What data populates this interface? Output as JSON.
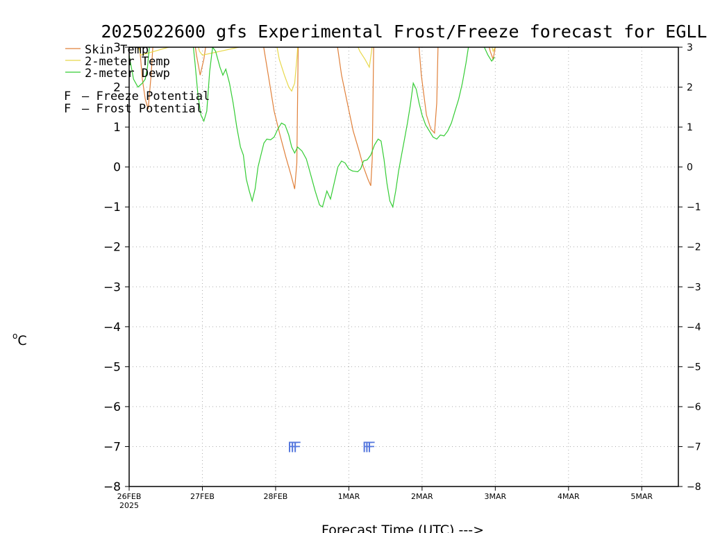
{
  "chart_data": {
    "type": "line",
    "title": "2025022600 gfs Experimental Frost/Freeze forecast for EGLL",
    "xlabel": "Forecast Time (UTC) --->",
    "ylabel": "°C",
    "ylabel_sup": "o",
    "ylabel_main": "C",
    "ylim": [
      -8,
      3
    ],
    "y_ticks": [
      -8,
      -7,
      -6,
      -5,
      -4,
      -3,
      -2,
      -1,
      0,
      1,
      2,
      3
    ],
    "y_tick_labels": [
      "−8",
      "−7",
      "−6",
      "−5",
      "−4",
      "−3",
      "−2",
      "−1",
      "0",
      "1",
      "2",
      "3"
    ],
    "x_range_days": [
      0,
      7.5
    ],
    "x_ticks": [
      {
        "day": 0,
        "label": "26FEB",
        "sub": "2025"
      },
      {
        "day": 1,
        "label": "27FEB",
        "sub": ""
      },
      {
        "day": 2,
        "label": "28FEB",
        "sub": ""
      },
      {
        "day": 3,
        "label": "1MAR",
        "sub": ""
      },
      {
        "day": 4,
        "label": "2MAR",
        "sub": ""
      },
      {
        "day": 5,
        "label": "3MAR",
        "sub": ""
      },
      {
        "day": 6,
        "label": "4MAR",
        "sub": ""
      },
      {
        "day": 7,
        "label": "5MAR",
        "sub": ""
      }
    ],
    "grid": true,
    "legend_placement": "top-left",
    "series": [
      {
        "name": "Skin Temp",
        "color": "#e0803a",
        "points": [
          [
            0.13,
            3.3
          ],
          [
            0.18,
            2.2
          ],
          [
            0.22,
            1.7
          ],
          [
            0.26,
            1.45
          ],
          [
            0.3,
            2.3
          ],
          [
            0.33,
            3.2
          ],
          [
            0.88,
            3.3
          ],
          [
            0.92,
            2.8
          ],
          [
            0.97,
            2.3
          ],
          [
            1.02,
            2.7
          ],
          [
            1.06,
            3.2
          ],
          [
            1.82,
            3.2
          ],
          [
            1.9,
            2.3
          ],
          [
            1.98,
            1.4
          ],
          [
            2.06,
            0.8
          ],
          [
            2.14,
            0.25
          ],
          [
            2.21,
            -0.2
          ],
          [
            2.26,
            -0.55
          ],
          [
            2.29,
            0.1
          ],
          [
            2.31,
            3.2
          ],
          [
            2.83,
            3.2
          ],
          [
            2.9,
            2.3
          ],
          [
            2.98,
            1.6
          ],
          [
            3.06,
            0.9
          ],
          [
            3.14,
            0.4
          ],
          [
            3.2,
            0.0
          ],
          [
            3.26,
            -0.3
          ],
          [
            3.3,
            -0.47
          ],
          [
            3.32,
            0.2
          ],
          [
            3.34,
            3.2
          ],
          [
            3.95,
            3.2
          ],
          [
            3.99,
            2.3
          ],
          [
            4.06,
            1.3
          ],
          [
            4.12,
            0.95
          ],
          [
            4.17,
            0.85
          ],
          [
            4.2,
            1.6
          ],
          [
            4.22,
            3.2
          ],
          [
            4.89,
            3.2
          ],
          [
            4.93,
            2.9
          ],
          [
            4.97,
            2.7
          ],
          [
            5.0,
            3.0
          ]
        ]
      },
      {
        "name": "2-meter Temp",
        "color": "#e8d84a",
        "points": [
          [
            0.13,
            3.0
          ],
          [
            0.16,
            2.8
          ],
          [
            0.92,
            3.2
          ],
          [
            0.96,
            2.9
          ],
          [
            1.0,
            2.8
          ],
          [
            2.0,
            3.2
          ],
          [
            2.05,
            2.7
          ],
          [
            2.12,
            2.3
          ],
          [
            2.18,
            2.0
          ],
          [
            2.22,
            1.9
          ],
          [
            2.26,
            2.1
          ],
          [
            2.29,
            2.7
          ],
          [
            2.31,
            3.2
          ],
          [
            3.08,
            3.2
          ],
          [
            3.15,
            2.9
          ],
          [
            3.22,
            2.7
          ],
          [
            3.28,
            2.5
          ],
          [
            3.31,
            2.9
          ],
          [
            3.33,
            3.2
          ],
          [
            4.93,
            3.2
          ],
          [
            4.97,
            2.9
          ],
          [
            5.0,
            3.0
          ]
        ]
      },
      {
        "name": "2-meter Dewp",
        "color": "#33cc33",
        "points": [
          [
            0.0,
            2.8
          ],
          [
            0.06,
            2.2
          ],
          [
            0.12,
            2.0
          ],
          [
            0.18,
            2.1
          ],
          [
            0.22,
            2.2
          ],
          [
            0.25,
            2.5
          ],
          [
            0.27,
            2.9
          ],
          [
            0.3,
            3.3
          ],
          [
            0.86,
            3.3
          ],
          [
            0.9,
            2.6
          ],
          [
            0.94,
            1.8
          ],
          [
            0.98,
            1.3
          ],
          [
            1.02,
            1.15
          ],
          [
            1.06,
            1.4
          ],
          [
            1.1,
            2.4
          ],
          [
            1.14,
            3.0
          ],
          [
            1.18,
            2.9
          ],
          [
            1.24,
            2.5
          ],
          [
            1.28,
            2.3
          ],
          [
            1.32,
            2.45
          ],
          [
            1.37,
            2.1
          ],
          [
            1.42,
            1.6
          ],
          [
            1.47,
            1.0
          ],
          [
            1.52,
            0.5
          ],
          [
            1.56,
            0.3
          ],
          [
            1.6,
            -0.3
          ],
          [
            1.64,
            -0.6
          ],
          [
            1.68,
            -0.85
          ],
          [
            1.72,
            -0.55
          ],
          [
            1.76,
            0.0
          ],
          [
            1.8,
            0.3
          ],
          [
            1.84,
            0.6
          ],
          [
            1.88,
            0.7
          ],
          [
            1.93,
            0.68
          ],
          [
            1.98,
            0.75
          ],
          [
            2.03,
            0.95
          ],
          [
            2.08,
            1.1
          ],
          [
            2.13,
            1.05
          ],
          [
            2.18,
            0.8
          ],
          [
            2.22,
            0.5
          ],
          [
            2.26,
            0.35
          ],
          [
            2.3,
            0.5
          ],
          [
            2.36,
            0.4
          ],
          [
            2.42,
            0.2
          ],
          [
            2.48,
            -0.2
          ],
          [
            2.54,
            -0.6
          ],
          [
            2.6,
            -0.95
          ],
          [
            2.64,
            -1.0
          ],
          [
            2.7,
            -0.6
          ],
          [
            2.75,
            -0.8
          ],
          [
            2.8,
            -0.4
          ],
          [
            2.85,
            0.0
          ],
          [
            2.9,
            0.15
          ],
          [
            2.95,
            0.1
          ],
          [
            3.0,
            -0.05
          ],
          [
            3.05,
            -0.1
          ],
          [
            3.12,
            -0.12
          ],
          [
            3.16,
            -0.05
          ],
          [
            3.2,
            0.15
          ],
          [
            3.25,
            0.18
          ],
          [
            3.3,
            0.3
          ],
          [
            3.35,
            0.55
          ],
          [
            3.4,
            0.7
          ],
          [
            3.44,
            0.65
          ],
          [
            3.48,
            0.2
          ],
          [
            3.52,
            -0.4
          ],
          [
            3.56,
            -0.85
          ],
          [
            3.6,
            -1.0
          ],
          [
            3.64,
            -0.6
          ],
          [
            3.68,
            -0.1
          ],
          [
            3.72,
            0.3
          ],
          [
            3.76,
            0.7
          ],
          [
            3.8,
            1.1
          ],
          [
            3.84,
            1.55
          ],
          [
            3.88,
            2.1
          ],
          [
            3.92,
            1.95
          ],
          [
            3.96,
            1.6
          ],
          [
            4.0,
            1.3
          ],
          [
            4.05,
            1.05
          ],
          [
            4.1,
            0.9
          ],
          [
            4.15,
            0.75
          ],
          [
            4.2,
            0.7
          ],
          [
            4.25,
            0.8
          ],
          [
            4.3,
            0.78
          ],
          [
            4.35,
            0.9
          ],
          [
            4.4,
            1.1
          ],
          [
            4.45,
            1.4
          ],
          [
            4.5,
            1.7
          ],
          [
            4.55,
            2.1
          ],
          [
            4.6,
            2.6
          ],
          [
            4.65,
            3.2
          ],
          [
            4.8,
            3.3
          ],
          [
            4.85,
            3.0
          ],
          [
            4.9,
            2.8
          ],
          [
            4.95,
            2.65
          ],
          [
            4.99,
            2.75
          ]
        ]
      }
    ],
    "markers": {
      "text": "F",
      "color": "#5577dd",
      "groups": [
        {
          "start": 2.16,
          "end": 2.38,
          "y": -7.0,
          "count": 3
        },
        {
          "start": 3.18,
          "end": 3.38,
          "y": -7.0,
          "count": 3
        }
      ]
    },
    "legend": [
      {
        "label": "Skin Temp",
        "color": "#e0803a",
        "kind": "line"
      },
      {
        "label": "2-meter Temp",
        "color": "#e8d84a",
        "kind": "line"
      },
      {
        "label": "2-meter Dewp",
        "color": "#33cc33",
        "kind": "line"
      },
      {
        "label": "– Freeze Potential",
        "marker": "F",
        "color": "#dd44aa",
        "kind": "marker"
      },
      {
        "label": "– Frost Potential",
        "marker": "F",
        "color": "#5577dd",
        "kind": "marker"
      }
    ]
  }
}
